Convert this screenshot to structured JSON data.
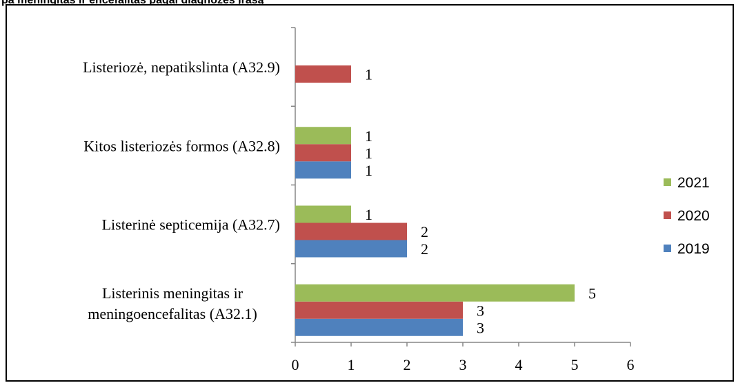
{
  "caption": "pa meningitas ir encefalitas pagal diagnozes įrašą",
  "chart_data": {
    "type": "bar",
    "orientation": "horizontal",
    "categories": [
      "Listerinis meningitas ir meningoencefalitas (A32.1)",
      "Listerinė septicemija (A32.7)",
      "Kitos listeriozės formos (A32.8)",
      "Listeriozė, nepatikslinta (A32.9)"
    ],
    "category_lines": [
      [
        "Listerinis meningitas ir",
        "meningoencefalitas (A32.1)"
      ],
      [
        "Listerinė septicemija (A32.7)"
      ],
      [
        "Kitos listeriozės formos (A32.8)"
      ],
      [
        "Listeriozė, nepatikslinta (A32.9)"
      ]
    ],
    "series": [
      {
        "name": "2019",
        "color": "#4f81bd",
        "values": [
          3,
          2,
          1,
          null
        ]
      },
      {
        "name": "2020",
        "color": "#c0504d",
        "values": [
          3,
          2,
          1,
          1
        ]
      },
      {
        "name": "2021",
        "color": "#9bbb59",
        "values": [
          5,
          1,
          1,
          null
        ]
      }
    ],
    "xlim": [
      0,
      6
    ],
    "xticks": [
      0,
      1,
      2,
      3,
      4,
      5,
      6
    ],
    "grid": false,
    "legend_position": "right",
    "legend_order": [
      "2021",
      "2020",
      "2019"
    ],
    "data_labels": true
  }
}
